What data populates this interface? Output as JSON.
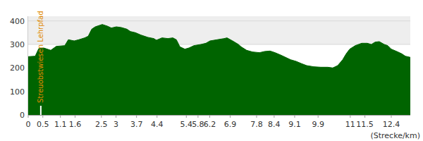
{
  "chart_data": {
    "type": "area",
    "x_label": "(Strecke/km)",
    "x": [
      0,
      0.24,
      0.36,
      0.53,
      0.77,
      0.96,
      1.25,
      1.37,
      1.57,
      1.73,
      1.93,
      2.05,
      2.17,
      2.29,
      2.53,
      2.7,
      2.84,
      3.01,
      3.18,
      3.37,
      3.49,
      3.66,
      3.85,
      4.09,
      4.29,
      4.38,
      4.57,
      4.77,
      4.94,
      5.06,
      5.18,
      5.35,
      5.49,
      5.66,
      5.9,
      6.07,
      6.21,
      6.45,
      6.69,
      6.79,
      6.98,
      7.18,
      7.27,
      7.46,
      7.66,
      7.9,
      8.07,
      8.26,
      8.43,
      8.62,
      8.79,
      8.96,
      9.15,
      9.34,
      9.51,
      9.75,
      9.99,
      10.23,
      10.4,
      10.57,
      10.74,
      10.86,
      10.98,
      11.17,
      11.39,
      11.58,
      11.72,
      11.85,
      11.99,
      12.16,
      12.28,
      12.4,
      12.59,
      12.76,
      12.88,
      13.05
    ],
    "values": [
      248,
      250,
      282,
      285,
      275,
      292,
      295,
      320,
      315,
      320,
      328,
      335,
      365,
      375,
      385,
      378,
      370,
      375,
      372,
      365,
      355,
      350,
      340,
      330,
      325,
      318,
      328,
      325,
      328,
      320,
      290,
      280,
      285,
      295,
      300,
      305,
      315,
      320,
      325,
      328,
      315,
      300,
      290,
      275,
      268,
      265,
      270,
      272,
      265,
      255,
      245,
      235,
      228,
      218,
      210,
      205,
      203,
      203,
      200,
      210,
      235,
      260,
      280,
      295,
      305,
      305,
      300,
      310,
      312,
      300,
      295,
      280,
      270,
      260,
      250,
      245
    ],
    "color": "#006400",
    "xlim": [
      0,
      13.05
    ],
    "ylim": [
      0,
      420
    ],
    "xticks": [
      0,
      0.5,
      1.1,
      1.6,
      2.5,
      3,
      3.7,
      4.4,
      5.4,
      5.8,
      6.2,
      6.9,
      7.8,
      8.4,
      9.1,
      9.9,
      11,
      11.5,
      12.4
    ],
    "yticks": [
      0,
      100,
      200,
      300,
      400
    ],
    "grid": true,
    "annotations": [
      {
        "text": "Streuobstwiesen Lehrpfad",
        "x": 0.43
      }
    ]
  }
}
